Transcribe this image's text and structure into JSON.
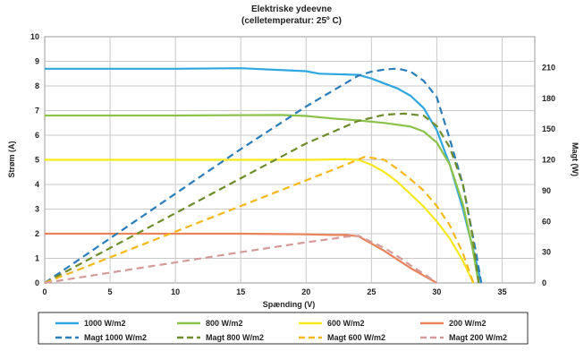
{
  "chart_data": {
    "type": "line",
    "title": "Elektriske ydeevne",
    "subtitle": "(celletemperatur: 25º C)",
    "xlabel": "Spænding (V)",
    "ylabel_left": "Strøm (A)",
    "ylabel_right": "Magt (W)",
    "xlim": [
      0,
      37.5
    ],
    "ylim_left": [
      0,
      10
    ],
    "ylim_right": [
      0,
      240
    ],
    "x_ticks": [
      0,
      5,
      10,
      15,
      20,
      25,
      30,
      35
    ],
    "y_ticks_left": [
      0,
      1,
      2,
      3,
      4,
      5,
      6,
      7,
      8,
      9,
      10
    ],
    "y_ticks_right": [
      0,
      30,
      60,
      90,
      120,
      150,
      180,
      210
    ],
    "grid": true,
    "legend_position": "bottom",
    "series": [
      {
        "name": "1000 W/m2",
        "axis": "left",
        "style": "solid",
        "color": "#2ea6df",
        "points": [
          [
            0,
            8.7
          ],
          [
            10,
            8.7
          ],
          [
            15,
            8.72
          ],
          [
            20,
            8.6
          ],
          [
            21,
            8.5
          ],
          [
            24,
            8.45
          ],
          [
            25,
            8.3
          ],
          [
            26,
            8.1
          ],
          [
            27,
            7.9
          ],
          [
            28,
            7.6
          ],
          [
            29,
            7.1
          ],
          [
            30,
            6.2
          ],
          [
            31,
            4.8
          ],
          [
            32,
            3.0
          ],
          [
            33,
            0.9
          ],
          [
            33.4,
            0
          ]
        ]
      },
      {
        "name": "800 W/m2",
        "axis": "left",
        "style": "solid",
        "color": "#8ac24a",
        "points": [
          [
            0,
            6.8
          ],
          [
            10,
            6.8
          ],
          [
            18,
            6.82
          ],
          [
            20,
            6.78
          ],
          [
            22,
            6.68
          ],
          [
            24,
            6.6
          ],
          [
            26,
            6.5
          ],
          [
            28,
            6.35
          ],
          [
            29,
            6.15
          ],
          [
            30,
            5.7
          ],
          [
            31,
            4.8
          ],
          [
            32,
            3.2
          ],
          [
            32.7,
            1.5
          ],
          [
            33.2,
            0
          ]
        ]
      },
      {
        "name": "600 W/m2",
        "axis": "left",
        "style": "solid",
        "color": "#f7e81c",
        "points": [
          [
            0,
            5.0
          ],
          [
            10,
            5.0
          ],
          [
            20,
            5.0
          ],
          [
            23,
            5.02
          ],
          [
            24,
            5.0
          ],
          [
            25,
            4.8
          ],
          [
            26,
            4.5
          ],
          [
            27,
            4.1
          ],
          [
            28,
            3.6
          ],
          [
            29,
            3.1
          ],
          [
            30,
            2.5
          ],
          [
            31,
            1.8
          ],
          [
            32,
            0.9
          ],
          [
            32.8,
            0
          ]
        ]
      },
      {
        "name": "200 W/m2",
        "axis": "left",
        "style": "solid",
        "color": "#e8835a",
        "points": [
          [
            0,
            2.0
          ],
          [
            10,
            2.0
          ],
          [
            15,
            2.0
          ],
          [
            20,
            1.98
          ],
          [
            22,
            1.95
          ],
          [
            23,
            1.95
          ],
          [
            24,
            1.9
          ],
          [
            25,
            1.6
          ],
          [
            26,
            1.3
          ],
          [
            27,
            0.95
          ],
          [
            28,
            0.6
          ],
          [
            29,
            0.3
          ],
          [
            30,
            0
          ]
        ]
      },
      {
        "name": "Magt 1000 W/m2",
        "axis": "right",
        "style": "dashed",
        "color": "#2a7db8",
        "points": [
          [
            0,
            0
          ],
          [
            5,
            43.5
          ],
          [
            10,
            87
          ],
          [
            15,
            130.5
          ],
          [
            20,
            172
          ],
          [
            22,
            187
          ],
          [
            24,
            202
          ],
          [
            25,
            206
          ],
          [
            26,
            208
          ],
          [
            27,
            209
          ],
          [
            28,
            206
          ],
          [
            29,
            197
          ],
          [
            30,
            181
          ],
          [
            31,
            140
          ],
          [
            32,
            96
          ],
          [
            33,
            30
          ],
          [
            33.4,
            0
          ]
        ]
      },
      {
        "name": "Magt 800 W/m2",
        "axis": "right",
        "style": "dashed",
        "color": "#6e8c2a",
        "points": [
          [
            0,
            0
          ],
          [
            5,
            34
          ],
          [
            10,
            68
          ],
          [
            15,
            102
          ],
          [
            20,
            136
          ],
          [
            22,
            147
          ],
          [
            24,
            158
          ],
          [
            26,
            164
          ],
          [
            27.5,
            165
          ],
          [
            29,
            163
          ],
          [
            30,
            153
          ],
          [
            31,
            132
          ],
          [
            32,
            96
          ],
          [
            32.7,
            48
          ],
          [
            33.2,
            0
          ]
        ]
      },
      {
        "name": "Magt 600 W/m2",
        "axis": "right",
        "style": "dashed",
        "color": "#f5b81a",
        "points": [
          [
            0,
            0
          ],
          [
            5,
            25
          ],
          [
            10,
            50
          ],
          [
            15,
            75
          ],
          [
            20,
            100
          ],
          [
            23,
            115
          ],
          [
            24.5,
            123
          ],
          [
            26,
            120
          ],
          [
            27,
            111
          ],
          [
            28,
            101
          ],
          [
            29,
            90
          ],
          [
            30,
            75
          ],
          [
            31,
            56
          ],
          [
            32,
            29
          ],
          [
            32.8,
            0
          ]
        ]
      },
      {
        "name": "Magt 200 W/m2",
        "axis": "right",
        "style": "dashed",
        "color": "#d69a9a",
        "points": [
          [
            0,
            0
          ],
          [
            5,
            10
          ],
          [
            10,
            20
          ],
          [
            15,
            30
          ],
          [
            20,
            39.6
          ],
          [
            22,
            43
          ],
          [
            23,
            45
          ],
          [
            24,
            46
          ],
          [
            25,
            40
          ],
          [
            26,
            34
          ],
          [
            27,
            26
          ],
          [
            28,
            17
          ],
          [
            29,
            9
          ],
          [
            30,
            0
          ]
        ]
      }
    ]
  }
}
